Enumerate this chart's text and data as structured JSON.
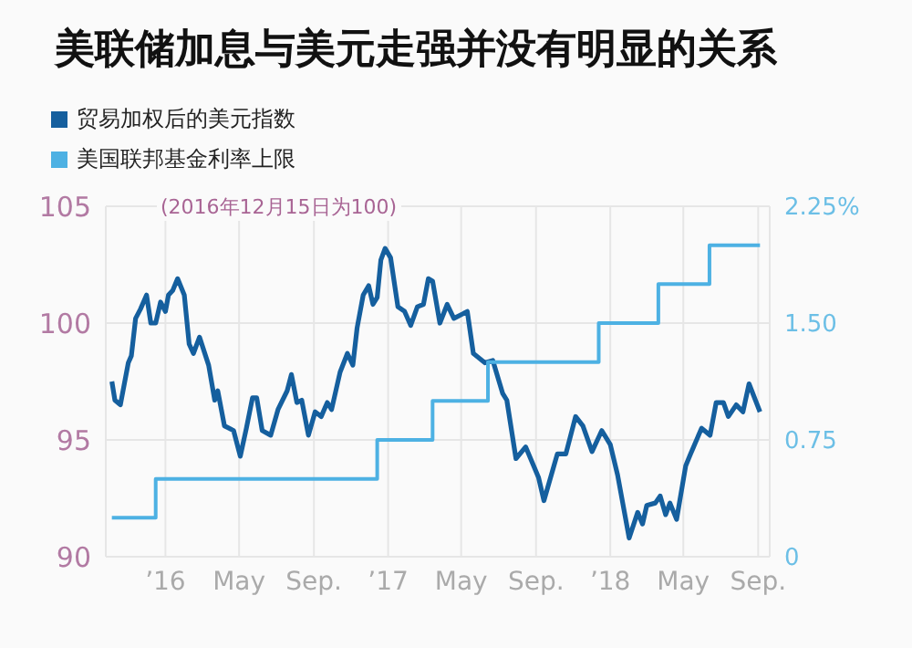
{
  "chart_data": {
    "type": "line",
    "title": "美联储加息与美元走强并没有明显的关系",
    "annotations": [
      "(2016年12月15日为100)"
    ],
    "legend": "top left",
    "grid": true,
    "xlim": [
      "2015-09-25",
      "2018-09-20"
    ],
    "xticks": [
      {
        "value": "2016-01-01",
        "label": "’16"
      },
      {
        "value": "2016-05-01",
        "label": "May"
      },
      {
        "value": "2016-09-01",
        "label": "Sep."
      },
      {
        "value": "2017-01-01",
        "label": "’17"
      },
      {
        "value": "2017-05-01",
        "label": "May"
      },
      {
        "value": "2017-09-01",
        "label": "Sep."
      },
      {
        "value": "2018-01-01",
        "label": "’18"
      },
      {
        "value": "2018-05-01",
        "label": "May"
      },
      {
        "value": "2018-09-01",
        "label": "Sep."
      }
    ],
    "ylim": [
      90,
      105
    ],
    "yticks": [
      90,
      95,
      100,
      105
    ],
    "y2lim": [
      0,
      2.25
    ],
    "y2ticks": [
      {
        "value": 0,
        "label": "0"
      },
      {
        "value": 0.75,
        "label": "0.75"
      },
      {
        "value": 1.5,
        "label": "1.50"
      },
      {
        "value": 2.25,
        "label": "2.25%"
      }
    ],
    "series": [
      {
        "name": "贸易加权后的美元指数",
        "color": "#155f9e",
        "x": [
          "2015-10-05",
          "2015-10-10",
          "2015-10-19",
          "2015-11-01",
          "2015-11-06",
          "2015-11-13",
          "2015-11-21",
          "2015-12-01",
          "2015-12-08",
          "2015-12-16",
          "2015-12-24",
          "2016-01-01",
          "2016-01-06",
          "2016-01-13",
          "2016-01-21",
          "2016-02-01",
          "2016-02-09",
          "2016-02-16",
          "2016-02-26",
          "2016-03-12",
          "2016-03-22",
          "2016-03-27",
          "2016-04-07",
          "2016-04-22",
          "2016-05-03",
          "2016-05-13",
          "2016-05-23",
          "2016-05-30",
          "2016-06-08",
          "2016-06-22",
          "2016-07-04",
          "2016-07-19",
          "2016-07-26",
          "2016-08-04",
          "2016-08-12",
          "2016-08-23",
          "2016-09-03",
          "2016-09-13",
          "2016-09-23",
          "2016-09-30",
          "2016-10-14",
          "2016-10-26",
          "2016-11-04",
          "2016-11-11",
          "2016-11-21",
          "2016-11-30",
          "2016-12-07",
          "2016-12-14",
          "2016-12-20",
          "2016-12-27",
          "2017-01-05",
          "2017-01-17",
          "2017-01-28",
          "2017-02-07",
          "2017-02-18",
          "2017-02-28",
          "2017-03-08",
          "2017-03-15",
          "2017-03-27",
          "2017-04-08",
          "2017-04-19",
          "2017-05-04",
          "2017-05-11",
          "2017-05-21",
          "2017-06-09",
          "2017-06-22",
          "2017-07-08",
          "2017-07-15",
          "2017-07-30",
          "2017-08-15",
          "2017-09-05",
          "2017-09-14",
          "2017-10-06",
          "2017-10-20",
          "2017-11-05",
          "2017-11-17",
          "2017-12-02",
          "2017-12-18",
          "2018-01-01",
          "2018-01-13",
          "2018-02-01",
          "2018-02-15",
          "2018-02-23",
          "2018-03-02",
          "2018-03-16",
          "2018-03-24",
          "2018-04-02",
          "2018-04-09",
          "2018-04-20",
          "2018-05-05",
          "2018-05-13",
          "2018-05-31",
          "2018-06-14",
          "2018-06-24",
          "2018-07-06",
          "2018-07-14",
          "2018-07-27",
          "2018-08-07",
          "2018-08-17",
          "2018-09-04"
        ],
        "values": [
          97.5,
          96.7,
          96.5,
          98.3,
          98.6,
          100.2,
          100.6,
          101.2,
          100.0,
          100.0,
          100.9,
          100.5,
          101.2,
          101.4,
          101.9,
          101.2,
          99.1,
          98.7,
          99.4,
          98.2,
          96.7,
          97.1,
          95.6,
          95.4,
          94.3,
          95.5,
          96.8,
          96.8,
          95.4,
          95.2,
          96.3,
          97.1,
          97.8,
          96.6,
          96.7,
          95.2,
          96.2,
          96.0,
          96.6,
          96.3,
          97.9,
          98.7,
          98.2,
          99.8,
          101.2,
          101.6,
          100.8,
          101.1,
          102.7,
          103.2,
          102.8,
          100.7,
          100.5,
          99.9,
          100.7,
          100.8,
          101.9,
          101.8,
          100.0,
          100.8,
          100.2,
          100.4,
          100.5,
          98.7,
          98.3,
          98.4,
          97.0,
          96.7,
          94.2,
          94.7,
          93.4,
          92.4,
          94.4,
          94.4,
          96.0,
          95.6,
          94.5,
          95.4,
          94.8,
          93.5,
          90.8,
          91.9,
          91.4,
          92.2,
          92.3,
          92.6,
          91.8,
          92.3,
          91.6,
          93.9,
          94.4,
          95.5,
          95.2,
          96.6,
          96.6,
          96.0,
          96.5,
          96.2,
          97.4,
          96.2
        ]
      },
      {
        "name": "美国联邦基金利率上限",
        "type": "step",
        "axis": "y2",
        "color": "#4db1e3",
        "x": [
          "2015-10-05",
          "2015-12-16",
          "2016-12-14",
          "2017-03-15",
          "2017-06-14",
          "2017-12-13",
          "2018-03-21",
          "2018-06-13",
          "2018-09-04"
        ],
        "values": [
          0.25,
          0.5,
          0.75,
          1.0,
          1.25,
          1.5,
          1.75,
          2.0,
          2.0
        ]
      }
    ]
  }
}
